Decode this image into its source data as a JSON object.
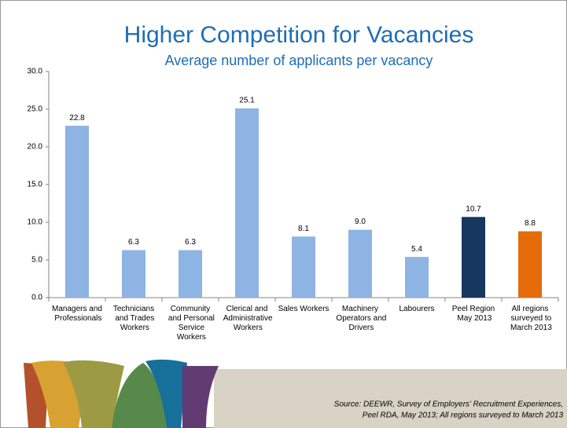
{
  "chart_data": {
    "type": "bar",
    "title": "Higher Competition for Vacancies",
    "subtitle": "Average number of applicants per vacancy",
    "categories": [
      "Managers and\nProfessionals",
      "Technicians\nand Trades\nWorkers",
      "Community\nand Personal\nService\nWorkers",
      "Clerical and\nAdministrative\nWorkers",
      "Sales Workers",
      "Machinery\nOperators and\nDrivers",
      "Labourers",
      "Peel Region\nMay 2013",
      "All regions\nsurveyed to\nMarch 2013"
    ],
    "values": [
      22.8,
      6.3,
      6.3,
      25.1,
      8.1,
      9.0,
      5.4,
      10.7,
      8.8
    ],
    "value_labels": [
      "22.8",
      "6.3",
      "6.3",
      "25.1",
      "8.1",
      "9.0",
      "5.4",
      "10.7",
      "8.8"
    ],
    "colors": [
      "#8db4e2",
      "#8db4e2",
      "#8db4e2",
      "#8db4e2",
      "#8db4e2",
      "#8db4e2",
      "#8db4e2",
      "#17375e",
      "#e46c0a"
    ],
    "ylim": [
      0,
      30
    ],
    "yticks": [
      {
        "value": 0,
        "label": "0.0"
      },
      {
        "value": 5,
        "label": "5.0"
      },
      {
        "value": 10,
        "label": "10.0"
      },
      {
        "value": 15,
        "label": "15.0"
      },
      {
        "value": 20,
        "label": "20.0"
      },
      {
        "value": 25,
        "label": "25.0"
      },
      {
        "value": 30,
        "label": "30.0"
      }
    ],
    "grid": false,
    "source": [
      "Source:  DEEWR, Survey of Employers’ Recruitment Experiences,",
      "Peel RDA, May 2013; All regions surveyed to March 2013"
    ]
  }
}
